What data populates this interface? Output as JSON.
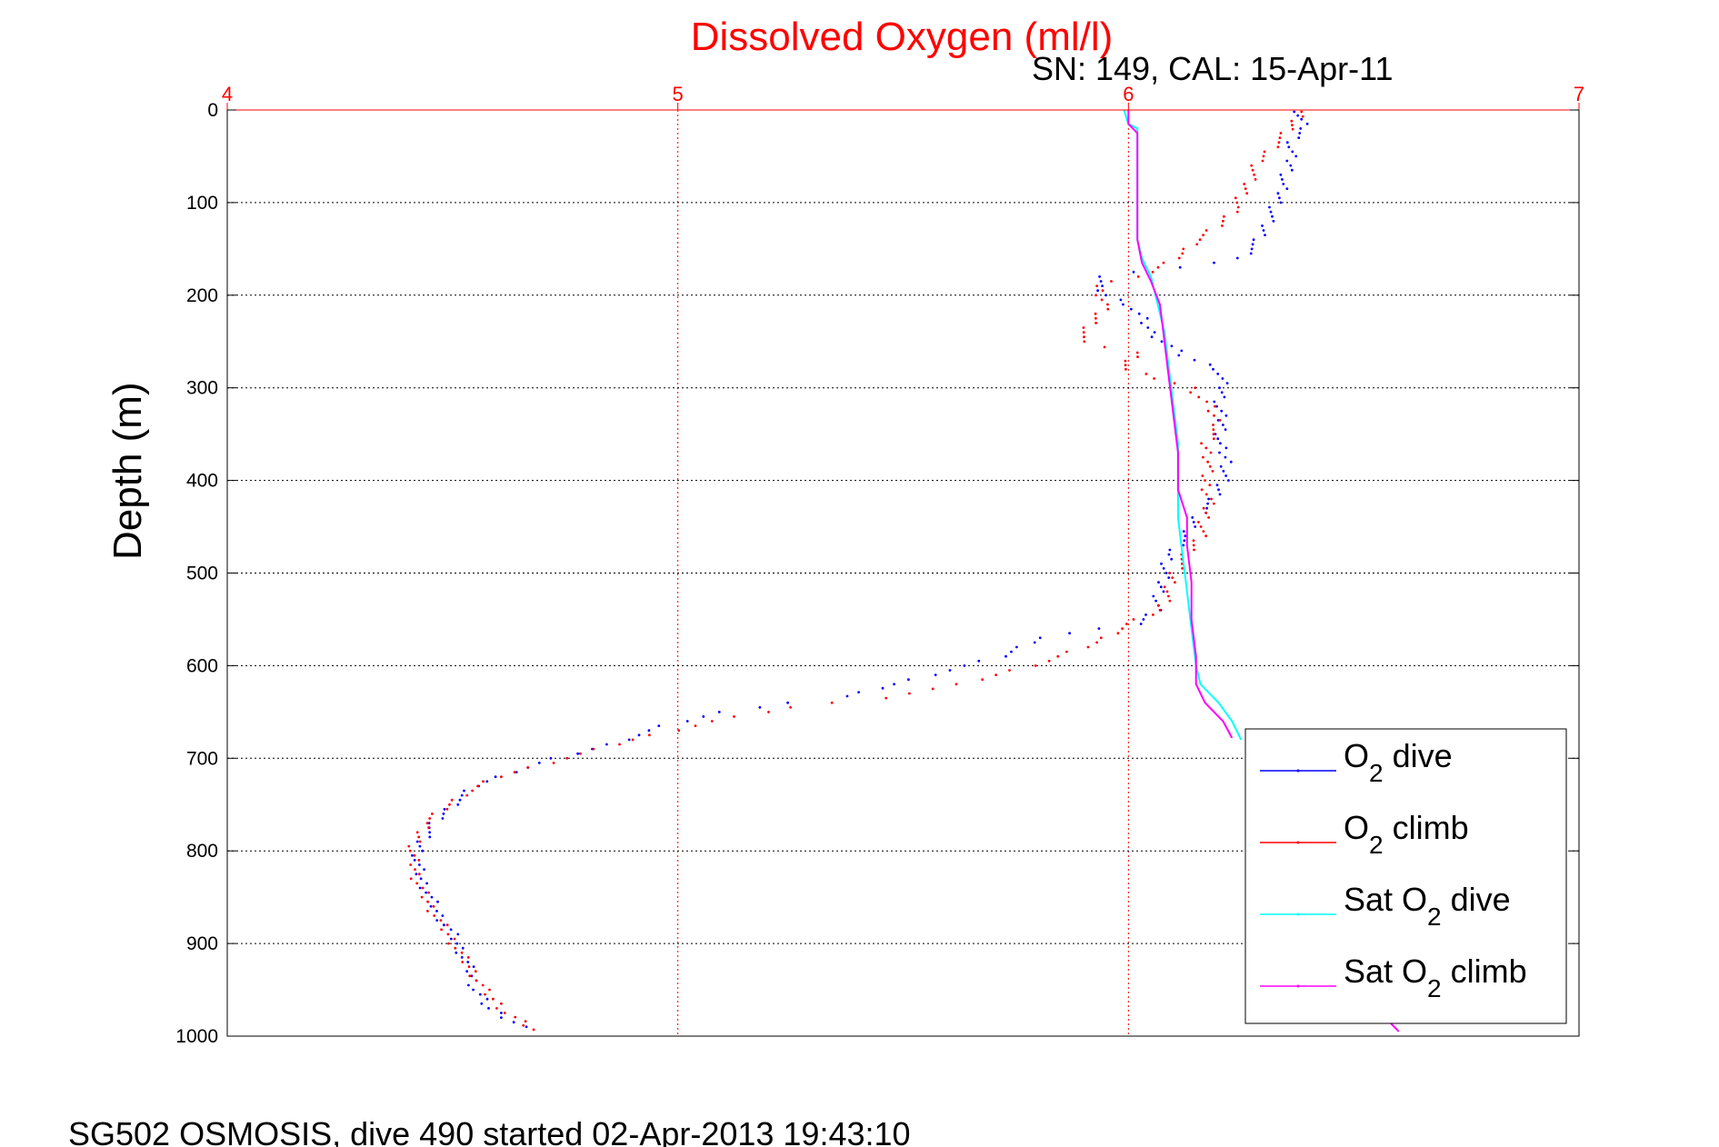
{
  "chart_data": {
    "type": "line",
    "title": "Dissolved Oxygen (ml/l)",
    "subtitle": "SN: 149, CAL: 15-Apr-11",
    "ylabel": "Depth (m)",
    "footer": "SG502 OSMOSIS, dive 490 started 02-Apr-2013 19:43:10",
    "xlim": [
      4,
      7
    ],
    "ylim": [
      0,
      1000
    ],
    "y_reversed": true,
    "x_axis_position": "top",
    "x_ticks": [
      "4",
      "5",
      "6",
      "7"
    ],
    "y_ticks": [
      "0",
      "100",
      "200",
      "300",
      "400",
      "500",
      "600",
      "700",
      "800",
      "900",
      "1000"
    ],
    "grid": true,
    "legend_position": "bottom-right",
    "series": [
      {
        "name": "O2 dive",
        "legend_main": "O",
        "legend_sub": "2",
        "legend_rest": " dive",
        "color": "#0000ff",
        "style": "dots",
        "points": [
          [
            6.38,
            2
          ],
          [
            6.38,
            10
          ],
          [
            6.39,
            20
          ],
          [
            6.37,
            30
          ],
          [
            6.36,
            40
          ],
          [
            6.36,
            50
          ],
          [
            6.36,
            60
          ],
          [
            6.35,
            70
          ],
          [
            6.34,
            80
          ],
          [
            6.34,
            90
          ],
          [
            6.33,
            100
          ],
          [
            6.32,
            110
          ],
          [
            6.31,
            120
          ],
          [
            6.3,
            130
          ],
          [
            6.29,
            140
          ],
          [
            6.27,
            150
          ],
          [
            6.25,
            160
          ],
          [
            6.19,
            165
          ],
          [
            5.94,
            180
          ],
          [
            5.93,
            190
          ],
          [
            5.95,
            200
          ],
          [
            6.0,
            210
          ],
          [
            6.03,
            225
          ],
          [
            6.05,
            240
          ],
          [
            6.12,
            265
          ],
          [
            6.2,
            280
          ],
          [
            6.21,
            300
          ],
          [
            6.2,
            320
          ],
          [
            6.21,
            340
          ],
          [
            6.2,
            360
          ],
          [
            6.22,
            380
          ],
          [
            6.21,
            400
          ],
          [
            6.19,
            420
          ],
          [
            6.15,
            440
          ],
          [
            6.13,
            460
          ],
          [
            6.09,
            480
          ],
          [
            6.08,
            500
          ],
          [
            6.07,
            520
          ],
          [
            6.06,
            540
          ],
          [
            6.02,
            555
          ],
          [
            5.8,
            570
          ],
          [
            5.72,
            590
          ],
          [
            5.6,
            605
          ],
          [
            5.48,
            620
          ],
          [
            5.38,
            633
          ],
          [
            5.24,
            640
          ],
          [
            5.1,
            650
          ],
          [
            4.97,
            665
          ],
          [
            4.85,
            685
          ],
          [
            4.73,
            700
          ],
          [
            4.63,
            715
          ],
          [
            4.55,
            730
          ],
          [
            4.5,
            750
          ],
          [
            4.46,
            770
          ],
          [
            4.43,
            790
          ],
          [
            4.42,
            810
          ],
          [
            4.43,
            830
          ],
          [
            4.45,
            850
          ],
          [
            4.47,
            870
          ],
          [
            4.5,
            890
          ],
          [
            4.52,
            910
          ],
          [
            4.54,
            930
          ],
          [
            4.55,
            950
          ],
          [
            4.58,
            970
          ],
          [
            4.66,
            990
          ]
        ]
      },
      {
        "name": "O2 climb",
        "legend_main": "O",
        "legend_sub": "2",
        "legend_rest": " climb",
        "color": "#ff0000",
        "style": "dots",
        "points": [
          [
            6.38,
            2
          ],
          [
            6.37,
            12
          ],
          [
            6.35,
            25
          ],
          [
            6.33,
            35
          ],
          [
            6.31,
            45
          ],
          [
            6.29,
            55
          ],
          [
            6.28,
            65
          ],
          [
            6.27,
            75
          ],
          [
            6.26,
            85
          ],
          [
            6.25,
            95
          ],
          [
            6.24,
            105
          ],
          [
            6.22,
            115
          ],
          [
            6.2,
            125
          ],
          [
            6.17,
            135
          ],
          [
            6.14,
            145
          ],
          [
            6.12,
            155
          ],
          [
            6.09,
            165
          ],
          [
            6.05,
            175
          ],
          [
            5.93,
            190
          ],
          [
            5.95,
            210
          ],
          [
            5.92,
            230
          ],
          [
            5.89,
            250
          ],
          [
            6.02,
            262
          ],
          [
            5.99,
            280
          ],
          [
            6.14,
            300
          ],
          [
            6.18,
            320
          ],
          [
            6.2,
            340
          ],
          [
            6.17,
            360
          ],
          [
            6.18,
            380
          ],
          [
            6.17,
            400
          ],
          [
            6.18,
            420
          ],
          [
            6.17,
            440
          ],
          [
            6.16,
            460
          ],
          [
            6.13,
            480
          ],
          [
            6.1,
            500
          ],
          [
            6.09,
            520
          ],
          [
            6.07,
            540
          ],
          [
            6.0,
            555
          ],
          [
            5.93,
            575
          ],
          [
            5.82,
            595
          ],
          [
            5.63,
            620
          ],
          [
            5.45,
            635
          ],
          [
            5.25,
            645
          ],
          [
            5.08,
            660
          ],
          [
            4.9,
            680
          ],
          [
            4.75,
            700
          ],
          [
            4.6,
            720
          ],
          [
            4.52,
            740
          ],
          [
            4.44,
            770
          ],
          [
            4.41,
            800
          ],
          [
            4.42,
            830
          ],
          [
            4.45,
            860
          ],
          [
            4.49,
            890
          ],
          [
            4.53,
            920
          ],
          [
            4.57,
            950
          ],
          [
            4.62,
            975
          ],
          [
            4.68,
            993
          ]
        ]
      },
      {
        "name": "Sat O2 dive",
        "legend_main": "Sat O",
        "legend_sub": "2",
        "legend_rest": " dive",
        "color": "#00ffff",
        "style": "line",
        "points": [
          [
            5.99,
            0
          ],
          [
            6.0,
            15
          ],
          [
            6.02,
            20
          ],
          [
            6.02,
            60
          ],
          [
            6.02,
            100
          ],
          [
            6.02,
            140
          ],
          [
            6.03,
            160
          ],
          [
            6.05,
            180
          ],
          [
            6.06,
            200
          ],
          [
            6.08,
            240
          ],
          [
            6.09,
            280
          ],
          [
            6.1,
            320
          ],
          [
            6.11,
            360
          ],
          [
            6.11,
            400
          ],
          [
            6.11,
            440
          ],
          [
            6.12,
            480
          ],
          [
            6.13,
            520
          ],
          [
            6.14,
            560
          ],
          [
            6.15,
            600
          ],
          [
            6.16,
            620
          ],
          [
            6.2,
            640
          ],
          [
            6.23,
            660
          ],
          [
            6.25,
            680
          ]
        ]
      },
      {
        "name": "Sat O2 climb",
        "legend_main": "Sat O",
        "legend_sub": "2",
        "legend_rest": " climb",
        "color": "#ff00ff",
        "style": "line",
        "points": [
          [
            6.0,
            0
          ],
          [
            6.0,
            15
          ],
          [
            6.02,
            25
          ],
          [
            6.02,
            60
          ],
          [
            6.02,
            100
          ],
          [
            6.02,
            140
          ],
          [
            6.03,
            165
          ],
          [
            6.05,
            185
          ],
          [
            6.07,
            210
          ],
          [
            6.08,
            250
          ],
          [
            6.09,
            290
          ],
          [
            6.1,
            330
          ],
          [
            6.11,
            370
          ],
          [
            6.11,
            410
          ],
          [
            6.13,
            440
          ],
          [
            6.13,
            470
          ],
          [
            6.14,
            510
          ],
          [
            6.14,
            550
          ],
          [
            6.15,
            590
          ],
          [
            6.15,
            620
          ],
          [
            6.17,
            640
          ],
          [
            6.21,
            660
          ],
          [
            6.23,
            678
          ],
          [
            6.58,
            985
          ],
          [
            6.6,
            995
          ]
        ]
      }
    ]
  }
}
